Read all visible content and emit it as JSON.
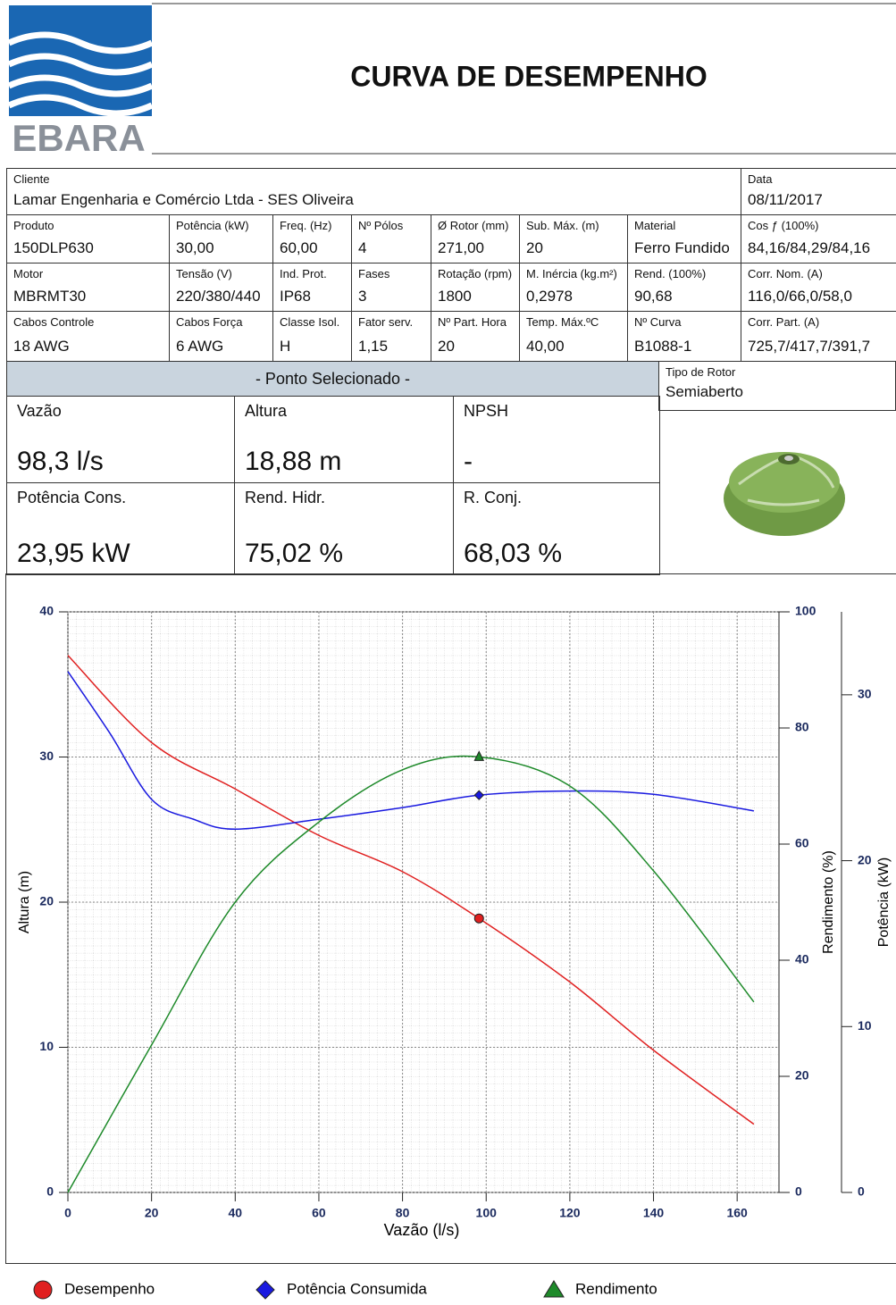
{
  "header": {
    "logo": "EBARA",
    "title": "CURVA DE DESEMPENHO"
  },
  "info_table": {
    "rows": [
      [
        {
          "label": "Cliente",
          "value": "Lamar Engenharia e Comércio Ltda - SES Oliveira"
        },
        {
          "label": "Data",
          "value": "08/11/2017"
        }
      ],
      [
        {
          "label": "Produto",
          "value": "150DLP630"
        },
        {
          "label": "Potência (kW)",
          "value": "30,00"
        },
        {
          "label": "Freq. (Hz)",
          "value": "60,00"
        },
        {
          "label": "Nº Pólos",
          "value": "4"
        },
        {
          "label": "Ø Rotor (mm)",
          "value": "271,00"
        },
        {
          "label": "Sub. Máx. (m)",
          "value": "20"
        },
        {
          "label": "Material",
          "value": "Ferro Fundido"
        },
        {
          "label": "Cos ƒ (100%)",
          "value": "84,16/84,29/84,16"
        }
      ],
      [
        {
          "label": "Motor",
          "value": "MBRMT30"
        },
        {
          "label": "Tensão (V)",
          "value": "220/380/440"
        },
        {
          "label": "Ind. Prot.",
          "value": "IP68"
        },
        {
          "label": "Fases",
          "value": "3"
        },
        {
          "label": "Rotação (rpm)",
          "value": "1800"
        },
        {
          "label": "M. Inércia (kg.m²)",
          "value": "0,2978"
        },
        {
          "label": "Rend. (100%)",
          "value": "90,68"
        },
        {
          "label": "Corr. Nom. (A)",
          "value": "116,0/66,0/58,0"
        }
      ],
      [
        {
          "label": "Cabos Controle",
          "value": "18 AWG"
        },
        {
          "label": "Cabos Força",
          "value": "6 AWG"
        },
        {
          "label": "Classe Isol.",
          "value": "H"
        },
        {
          "label": "Fator serv.",
          "value": "1,15"
        },
        {
          "label": "Nº Part. Hora",
          "value": "20"
        },
        {
          "label": "Temp. Máx.ºC",
          "value": "40,00"
        },
        {
          "label": "Nº Curva",
          "value": "B1088-1"
        },
        {
          "label": "Corr. Part. (A)",
          "value": "725,7/417,7/391,7"
        }
      ]
    ]
  },
  "selected_point": {
    "title": "- Ponto Selecionado -",
    "cells": [
      {
        "label": "Vazão",
        "value": "98,3 l/s"
      },
      {
        "label": "Altura",
        "value": "18,88 m"
      },
      {
        "label": "NPSH",
        "value": "-"
      },
      {
        "label": "Potência Cons.",
        "value": "23,95 kW"
      },
      {
        "label": "Rend. Hidr.",
        "value": "75,02 %"
      },
      {
        "label": "R. Conj.",
        "value": "68,03 %"
      }
    ]
  },
  "rotor": {
    "label": "Tipo de Rotor",
    "value": "Semiaberto"
  },
  "chart_data": {
    "type": "line",
    "x_label": "Vazão (l/s)",
    "y_label": "Altura (m)",
    "y2_label": "Rendimento (%)",
    "y3_label": "Potência (kW)",
    "xlim": [
      0,
      170
    ],
    "xticks": [
      0,
      20,
      40,
      60,
      80,
      100,
      120,
      140,
      160
    ],
    "ylim": [
      0,
      40
    ],
    "yticks": [
      0,
      10,
      20,
      30,
      40
    ],
    "y2lim": [
      0,
      100
    ],
    "y2ticks": [
      0,
      20,
      40,
      60,
      80,
      100
    ],
    "y3lim": [
      0,
      35
    ],
    "y3ticks": [
      0,
      10,
      20,
      30
    ],
    "grid": true,
    "marker_x": 98.3,
    "series": [
      {
        "name": "Desempenho",
        "color": "#e02020",
        "axis": "y",
        "marker": "circle",
        "x": [
          0,
          20,
          40,
          60,
          80,
          98.3,
          120,
          140,
          164
        ],
        "values": [
          37,
          31,
          27.8,
          24.6,
          22.1,
          18.88,
          14.5,
          9.8,
          4.7
        ]
      },
      {
        "name": "Potência Consumida",
        "color": "#1a1ae0",
        "axis": "y3",
        "marker": "diamond",
        "x": [
          0,
          10,
          20,
          30,
          40,
          60,
          80,
          98.3,
          120,
          140,
          164
        ],
        "values": [
          31.4,
          27.7,
          23.7,
          22.5,
          21.9,
          22.5,
          23.2,
          23.95,
          24.2,
          24.0,
          23.0
        ]
      },
      {
        "name": "Rendimento",
        "color": "#1e8a2a",
        "axis": "y2",
        "marker": "triangle",
        "x": [
          0,
          20,
          40,
          60,
          80,
          98.3,
          120,
          140,
          164
        ],
        "values": [
          0,
          25.4,
          50,
          63.8,
          72.8,
          75.02,
          70,
          55.4,
          32.8
        ]
      }
    ]
  }
}
